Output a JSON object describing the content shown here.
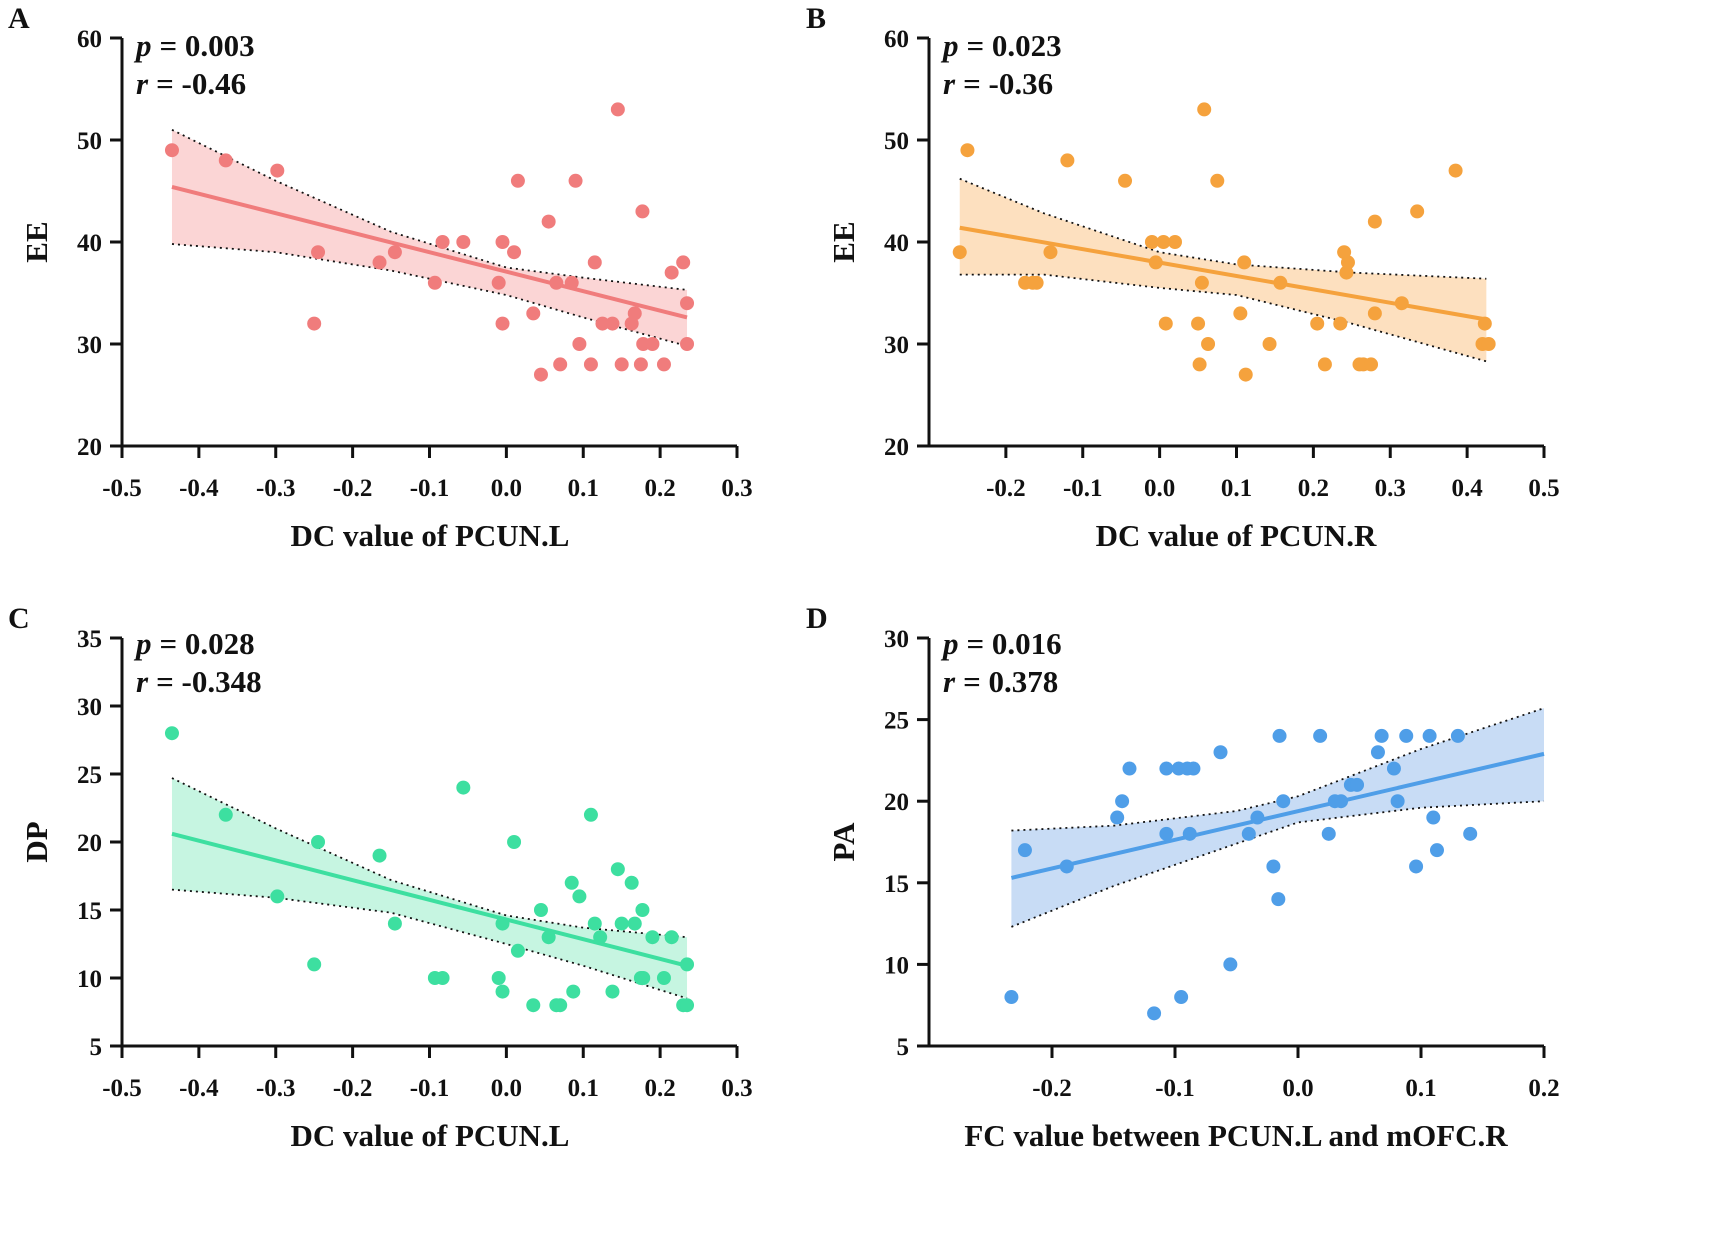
{
  "chart_data": [
    {
      "panel": "A",
      "type": "scatter",
      "xlabel": "DC value of PCUN.L",
      "ylabel": "EE",
      "stats": {
        "p_label": "p",
        "p_value": "= 0.003",
        "r_label": "r",
        "r_value": "= -0.46"
      },
      "color": "#f07c7c",
      "band_color": "#fbd5d5",
      "xlim": [
        -0.5,
        0.3
      ],
      "ylim": [
        20,
        60
      ],
      "xticks": [
        -0.5,
        -0.4,
        -0.3,
        -0.2,
        -0.1,
        0.0,
        0.1,
        0.2,
        0.3
      ],
      "xtick_labels": [
        "-0.5",
        "-0.4",
        "-0.3",
        "-0.2",
        "-0.1",
        "0.0",
        "0.1",
        "0.2",
        "0.3"
      ],
      "yticks": [
        20,
        30,
        40,
        50,
        60
      ],
      "ytick_labels": [
        "20",
        "30",
        "40",
        "50",
        "60"
      ],
      "fit_x": [
        -0.435,
        0.235
      ],
      "fit_y": [
        45.4,
        32.6
      ],
      "ci_upper": [
        [
          -0.435,
          51.0
        ],
        [
          -0.3,
          46.0
        ],
        [
          -0.15,
          41.0
        ],
        [
          0.0,
          37.5
        ],
        [
          0.1,
          36.5
        ],
        [
          0.235,
          35.3
        ]
      ],
      "ci_lower": [
        [
          -0.435,
          39.8
        ],
        [
          -0.3,
          39.0
        ],
        [
          -0.15,
          37.2
        ],
        [
          0.0,
          34.8
        ],
        [
          0.1,
          32.6
        ],
        [
          0.235,
          29.8
        ]
      ],
      "points": [
        {
          "x": -0.435,
          "y": 49
        },
        {
          "x": -0.365,
          "y": 48
        },
        {
          "x": -0.298,
          "y": 47
        },
        {
          "x": -0.245,
          "y": 39
        },
        {
          "x": -0.25,
          "y": 32
        },
        {
          "x": -0.165,
          "y": 38
        },
        {
          "x": -0.145,
          "y": 39
        },
        {
          "x": -0.093,
          "y": 36
        },
        {
          "x": -0.083,
          "y": 40
        },
        {
          "x": -0.056,
          "y": 40
        },
        {
          "x": -0.01,
          "y": 36
        },
        {
          "x": -0.005,
          "y": 40
        },
        {
          "x": -0.005,
          "y": 32
        },
        {
          "x": 0.01,
          "y": 39
        },
        {
          "x": 0.015,
          "y": 46
        },
        {
          "x": 0.035,
          "y": 33
        },
        {
          "x": 0.045,
          "y": 27
        },
        {
          "x": 0.055,
          "y": 42
        },
        {
          "x": 0.065,
          "y": 36
        },
        {
          "x": 0.07,
          "y": 28
        },
        {
          "x": 0.085,
          "y": 36
        },
        {
          "x": 0.09,
          "y": 46
        },
        {
          "x": 0.095,
          "y": 30
        },
        {
          "x": 0.11,
          "y": 28
        },
        {
          "x": 0.115,
          "y": 38
        },
        {
          "x": 0.125,
          "y": 32
        },
        {
          "x": 0.138,
          "y": 32
        },
        {
          "x": 0.145,
          "y": 53
        },
        {
          "x": 0.15,
          "y": 28
        },
        {
          "x": 0.163,
          "y": 32
        },
        {
          "x": 0.167,
          "y": 33
        },
        {
          "x": 0.175,
          "y": 28
        },
        {
          "x": 0.177,
          "y": 43
        },
        {
          "x": 0.178,
          "y": 30
        },
        {
          "x": 0.19,
          "y": 30
        },
        {
          "x": 0.205,
          "y": 28
        },
        {
          "x": 0.215,
          "y": 37
        },
        {
          "x": 0.23,
          "y": 38
        },
        {
          "x": 0.235,
          "y": 34
        },
        {
          "x": 0.235,
          "y": 30
        }
      ]
    },
    {
      "panel": "B",
      "type": "scatter",
      "xlabel": "DC value of PCUN.R",
      "ylabel": "EE",
      "stats": {
        "p_label": "p",
        "p_value": "= 0.023",
        "r_label": "r",
        "r_value": "= -0.36"
      },
      "color": "#f5a23d",
      "band_color": "#fde0bf",
      "xlim": [
        -0.3,
        0.5
      ],
      "ylim": [
        20,
        60
      ],
      "xticks": [
        -0.2,
        -0.1,
        0.0,
        0.1,
        0.2,
        0.3,
        0.4,
        0.5
      ],
      "xtick_labels": [
        "-0.2",
        "-0.1",
        "0.0",
        "0.1",
        "0.2",
        "0.3",
        "0.4",
        "0.5"
      ],
      "yticks": [
        20,
        30,
        40,
        50,
        60
      ],
      "ytick_labels": [
        "20",
        "30",
        "40",
        "50",
        "60"
      ],
      "fit_x": [
        -0.26,
        0.425
      ],
      "fit_y": [
        41.4,
        32.4
      ],
      "ci_upper": [
        [
          -0.26,
          46.2
        ],
        [
          -0.15,
          42.8
        ],
        [
          0.0,
          39.0
        ],
        [
          0.1,
          37.8
        ],
        [
          0.25,
          37.0
        ],
        [
          0.425,
          36.4
        ]
      ],
      "ci_lower": [
        [
          -0.26,
          36.8
        ],
        [
          -0.15,
          36.8
        ],
        [
          0.0,
          35.5
        ],
        [
          0.1,
          34.8
        ],
        [
          0.25,
          32.0
        ],
        [
          0.425,
          28.3
        ]
      ],
      "points": [
        {
          "x": -0.26,
          "y": 39
        },
        {
          "x": -0.25,
          "y": 49
        },
        {
          "x": -0.175,
          "y": 36
        },
        {
          "x": -0.165,
          "y": 36
        },
        {
          "x": -0.16,
          "y": 36
        },
        {
          "x": -0.142,
          "y": 39
        },
        {
          "x": -0.12,
          "y": 48
        },
        {
          "x": -0.045,
          "y": 46
        },
        {
          "x": -0.01,
          "y": 40
        },
        {
          "x": -0.005,
          "y": 38
        },
        {
          "x": 0.005,
          "y": 40
        },
        {
          "x": 0.008,
          "y": 32
        },
        {
          "x": 0.02,
          "y": 40
        },
        {
          "x": 0.05,
          "y": 32
        },
        {
          "x": 0.052,
          "y": 28
        },
        {
          "x": 0.055,
          "y": 36
        },
        {
          "x": 0.058,
          "y": 53
        },
        {
          "x": 0.063,
          "y": 30
        },
        {
          "x": 0.075,
          "y": 46
        },
        {
          "x": 0.105,
          "y": 33
        },
        {
          "x": 0.11,
          "y": 38
        },
        {
          "x": 0.112,
          "y": 27
        },
        {
          "x": 0.143,
          "y": 30
        },
        {
          "x": 0.157,
          "y": 36
        },
        {
          "x": 0.205,
          "y": 32
        },
        {
          "x": 0.215,
          "y": 28
        },
        {
          "x": 0.235,
          "y": 32
        },
        {
          "x": 0.24,
          "y": 39
        },
        {
          "x": 0.243,
          "y": 37
        },
        {
          "x": 0.245,
          "y": 38
        },
        {
          "x": 0.26,
          "y": 28
        },
        {
          "x": 0.265,
          "y": 28
        },
        {
          "x": 0.275,
          "y": 28
        },
        {
          "x": 0.28,
          "y": 42
        },
        {
          "x": 0.28,
          "y": 33
        },
        {
          "x": 0.315,
          "y": 34
        },
        {
          "x": 0.335,
          "y": 43
        },
        {
          "x": 0.385,
          "y": 47
        },
        {
          "x": 0.42,
          "y": 30
        },
        {
          "x": 0.423,
          "y": 32
        },
        {
          "x": 0.428,
          "y": 30
        }
      ]
    },
    {
      "panel": "C",
      "type": "scatter",
      "xlabel": "DC value of PCUN.L",
      "ylabel": "DP",
      "stats": {
        "p_label": "p",
        "p_value": "= 0.028",
        "r_label": "r",
        "r_value": "= -0.348"
      },
      "color": "#3ddfa0",
      "band_color": "#c6f5e1",
      "xlim": [
        -0.5,
        0.3
      ],
      "ylim": [
        5,
        35
      ],
      "xticks": [
        -0.5,
        -0.4,
        -0.3,
        -0.2,
        -0.1,
        0.0,
        0.1,
        0.2,
        0.3
      ],
      "xtick_labels": [
        "-0.5",
        "-0.4",
        "-0.3",
        "-0.2",
        "-0.1",
        "0.0",
        "0.1",
        "0.2",
        "0.3"
      ],
      "yticks": [
        5,
        10,
        15,
        20,
        25,
        30,
        35
      ],
      "ytick_labels": [
        "5",
        "10",
        "15",
        "20",
        "25",
        "30",
        "35"
      ],
      "fit_x": [
        -0.435,
        0.235
      ],
      "fit_y": [
        20.6,
        10.9
      ],
      "ci_upper": [
        [
          -0.435,
          24.7
        ],
        [
          -0.3,
          21.0
        ],
        [
          -0.15,
          17.2
        ],
        [
          0.0,
          14.6
        ],
        [
          0.1,
          13.7
        ],
        [
          0.235,
          13.0
        ]
      ],
      "ci_lower": [
        [
          -0.435,
          16.5
        ],
        [
          -0.3,
          15.9
        ],
        [
          -0.15,
          14.8
        ],
        [
          0.0,
          12.5
        ],
        [
          0.1,
          10.9
        ],
        [
          0.235,
          8.5
        ]
      ],
      "points": [
        {
          "x": -0.435,
          "y": 28
        },
        {
          "x": -0.365,
          "y": 22
        },
        {
          "x": -0.298,
          "y": 16
        },
        {
          "x": -0.245,
          "y": 20
        },
        {
          "x": -0.25,
          "y": 11
        },
        {
          "x": -0.165,
          "y": 19
        },
        {
          "x": -0.145,
          "y": 14
        },
        {
          "x": -0.093,
          "y": 10
        },
        {
          "x": -0.083,
          "y": 10
        },
        {
          "x": -0.056,
          "y": 24
        },
        {
          "x": -0.01,
          "y": 10
        },
        {
          "x": -0.005,
          "y": 14
        },
        {
          "x": -0.005,
          "y": 9
        },
        {
          "x": 0.01,
          "y": 20
        },
        {
          "x": 0.015,
          "y": 12
        },
        {
          "x": 0.035,
          "y": 8
        },
        {
          "x": 0.045,
          "y": 15
        },
        {
          "x": 0.055,
          "y": 13
        },
        {
          "x": 0.065,
          "y": 8
        },
        {
          "x": 0.07,
          "y": 8
        },
        {
          "x": 0.085,
          "y": 17
        },
        {
          "x": 0.087,
          "y": 9
        },
        {
          "x": 0.095,
          "y": 16
        },
        {
          "x": 0.11,
          "y": 22
        },
        {
          "x": 0.115,
          "y": 14
        },
        {
          "x": 0.122,
          "y": 13
        },
        {
          "x": 0.138,
          "y": 9
        },
        {
          "x": 0.145,
          "y": 18
        },
        {
          "x": 0.15,
          "y": 14
        },
        {
          "x": 0.163,
          "y": 17
        },
        {
          "x": 0.167,
          "y": 14
        },
        {
          "x": 0.175,
          "y": 10
        },
        {
          "x": 0.177,
          "y": 15
        },
        {
          "x": 0.178,
          "y": 10
        },
        {
          "x": 0.19,
          "y": 13
        },
        {
          "x": 0.205,
          "y": 10
        },
        {
          "x": 0.215,
          "y": 13
        },
        {
          "x": 0.23,
          "y": 8
        },
        {
          "x": 0.235,
          "y": 11
        },
        {
          "x": 0.235,
          "y": 8
        }
      ]
    },
    {
      "panel": "D",
      "type": "scatter",
      "xlabel": "FC value between PCUN.L and mOFC.R",
      "ylabel": "PA",
      "stats": {
        "p_label": "p",
        "p_value": "= 0.016",
        "r_label": "r",
        "r_value": "= 0.378"
      },
      "color": "#4f9ee8",
      "band_color": "#c8dcf5",
      "xlim": [
        -0.3,
        0.2
      ],
      "ylim": [
        5,
        30
      ],
      "xticks": [
        -0.2,
        -0.1,
        0.0,
        0.1,
        0.2
      ],
      "xtick_labels": [
        "-0.2",
        "-0.1",
        "0.0",
        "0.1",
        "0.2"
      ],
      "yticks": [
        5,
        10,
        15,
        20,
        25,
        30
      ],
      "ytick_labels": [
        "5",
        "10",
        "15",
        "20",
        "25",
        "30"
      ],
      "fit_x": [
        -0.233,
        0.2
      ],
      "fit_y": [
        15.3,
        22.9
      ],
      "ci_upper": [
        [
          -0.233,
          18.2
        ],
        [
          -0.15,
          18.5
        ],
        [
          -0.05,
          19.4
        ],
        [
          0.0,
          20.3
        ],
        [
          0.1,
          23.2
        ],
        [
          0.2,
          25.7
        ]
      ],
      "ci_lower": [
        [
          -0.233,
          12.3
        ],
        [
          -0.15,
          14.8
        ],
        [
          -0.05,
          17.4
        ],
        [
          0.0,
          18.7
        ],
        [
          0.1,
          19.6
        ],
        [
          0.2,
          20.0
        ]
      ],
      "points": [
        {
          "x": -0.233,
          "y": 8
        },
        {
          "x": -0.222,
          "y": 17
        },
        {
          "x": -0.188,
          "y": 16
        },
        {
          "x": -0.147,
          "y": 19
        },
        {
          "x": -0.143,
          "y": 20
        },
        {
          "x": -0.137,
          "y": 22
        },
        {
          "x": -0.117,
          "y": 7
        },
        {
          "x": -0.107,
          "y": 18
        },
        {
          "x": -0.107,
          "y": 22
        },
        {
          "x": -0.097,
          "y": 22
        },
        {
          "x": -0.095,
          "y": 8
        },
        {
          "x": -0.09,
          "y": 22
        },
        {
          "x": -0.088,
          "y": 18
        },
        {
          "x": -0.085,
          "y": 22
        },
        {
          "x": -0.063,
          "y": 23
        },
        {
          "x": -0.055,
          "y": 10
        },
        {
          "x": -0.04,
          "y": 18
        },
        {
          "x": -0.033,
          "y": 19
        },
        {
          "x": -0.02,
          "y": 16
        },
        {
          "x": -0.016,
          "y": 14
        },
        {
          "x": -0.015,
          "y": 24
        },
        {
          "x": -0.012,
          "y": 20
        },
        {
          "x": 0.018,
          "y": 24
        },
        {
          "x": 0.025,
          "y": 18
        },
        {
          "x": 0.03,
          "y": 20
        },
        {
          "x": 0.035,
          "y": 20
        },
        {
          "x": 0.043,
          "y": 21
        },
        {
          "x": 0.048,
          "y": 21
        },
        {
          "x": 0.065,
          "y": 23
        },
        {
          "x": 0.068,
          "y": 24
        },
        {
          "x": 0.078,
          "y": 22
        },
        {
          "x": 0.081,
          "y": 20
        },
        {
          "x": 0.088,
          "y": 24
        },
        {
          "x": 0.096,
          "y": 16
        },
        {
          "x": 0.107,
          "y": 24
        },
        {
          "x": 0.11,
          "y": 19
        },
        {
          "x": 0.113,
          "y": 17
        },
        {
          "x": 0.13,
          "y": 24
        },
        {
          "x": 0.14,
          "y": 18
        }
      ]
    }
  ]
}
